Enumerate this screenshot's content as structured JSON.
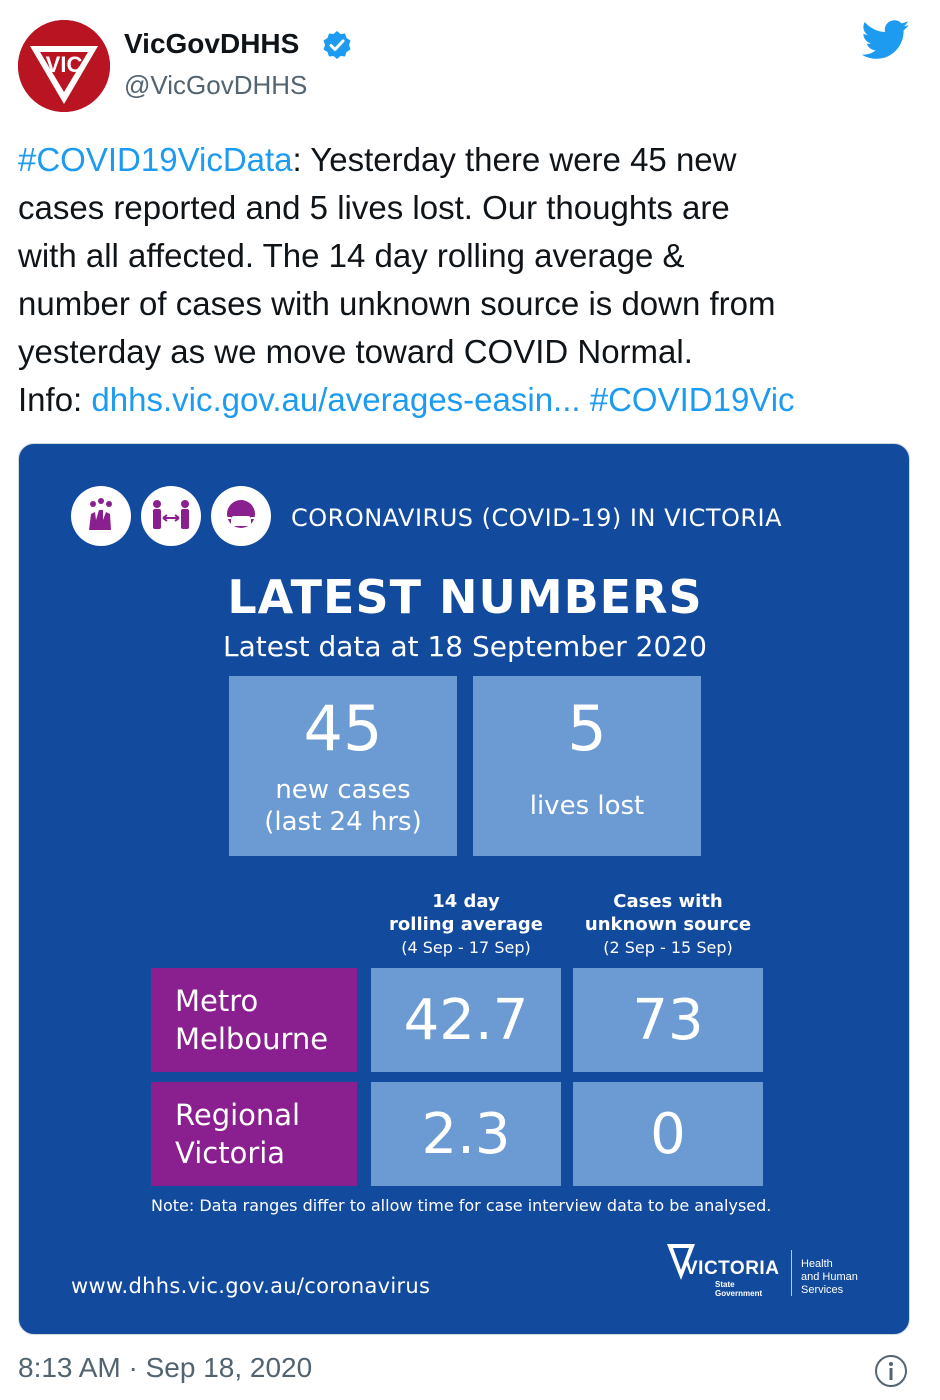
{
  "header": {
    "display_name": "VicGovDHHS",
    "handle": "@VicGovDHHS",
    "avatar_text": "VIC",
    "verified": true
  },
  "tweet": {
    "lines": [
      {
        "hashtag": "#COVID19VicData",
        "text": ": Yesterday there were 45 new"
      },
      {
        "text": "cases reported and 5 lives lost. Our thoughts are"
      },
      {
        "text": "with all affected. The 14 day rolling average &"
      },
      {
        "text": "number of cases with unknown source is down from"
      },
      {
        "text": "yesterday as we move toward COVID Normal."
      }
    ],
    "info_label": "Info:",
    "link_text": "dhhs.vic.gov.au/averages-easin...",
    "trailing_hashtag": "#COVID19Vic"
  },
  "card": {
    "header": "CORONAVIRUS (COVID-19) IN VICTORIA",
    "title": "LATEST NUMBERS",
    "subtitle": "Latest data at 18 September 2020",
    "new_cases": {
      "value": "45",
      "label_1": "new cases",
      "label_2": "(last 24 hrs)"
    },
    "lives_lost": {
      "value": "5",
      "label": "lives lost"
    },
    "col_rolling": {
      "line1": "14 day",
      "line2": "rolling average",
      "range": "(4 Sep - 17 Sep)"
    },
    "col_unknown": {
      "line1": "Cases with",
      "line2": "unknown source",
      "range": "(2 Sep - 15 Sep)"
    },
    "rows": [
      {
        "line1": "Metro",
        "line2": "Melbourne",
        "rolling": "42.7",
        "unknown": "73"
      },
      {
        "line1": "Regional",
        "line2": "Victoria",
        "rolling": "2.3",
        "unknown": "0"
      }
    ],
    "note": "Note: Data ranges differ to allow time for case interview data to be analysed.",
    "url": "www.dhhs.vic.gov.au/coronavirus",
    "logo": {
      "wordmark": "VICTORIA",
      "sub_1": "State",
      "sub_2": "Government",
      "dept_1": "Health",
      "dept_2": "and Human",
      "dept_3": "Services"
    }
  },
  "footer": {
    "timestamp": "8:13 AM · Sep 18, 2020"
  },
  "colors": {
    "link": "#1d9bf0",
    "card_bg": "#124a9e",
    "stat_box": "#6b9bd2",
    "region_box": "#8a1f8f",
    "avatar_bg": "#b81422"
  },
  "icons": [
    "vic-logo-avatar-icon",
    "verified-badge-icon",
    "twitter-bird-icon",
    "handwash-icon",
    "social-distance-icon",
    "face-mask-icon",
    "info-icon"
  ]
}
